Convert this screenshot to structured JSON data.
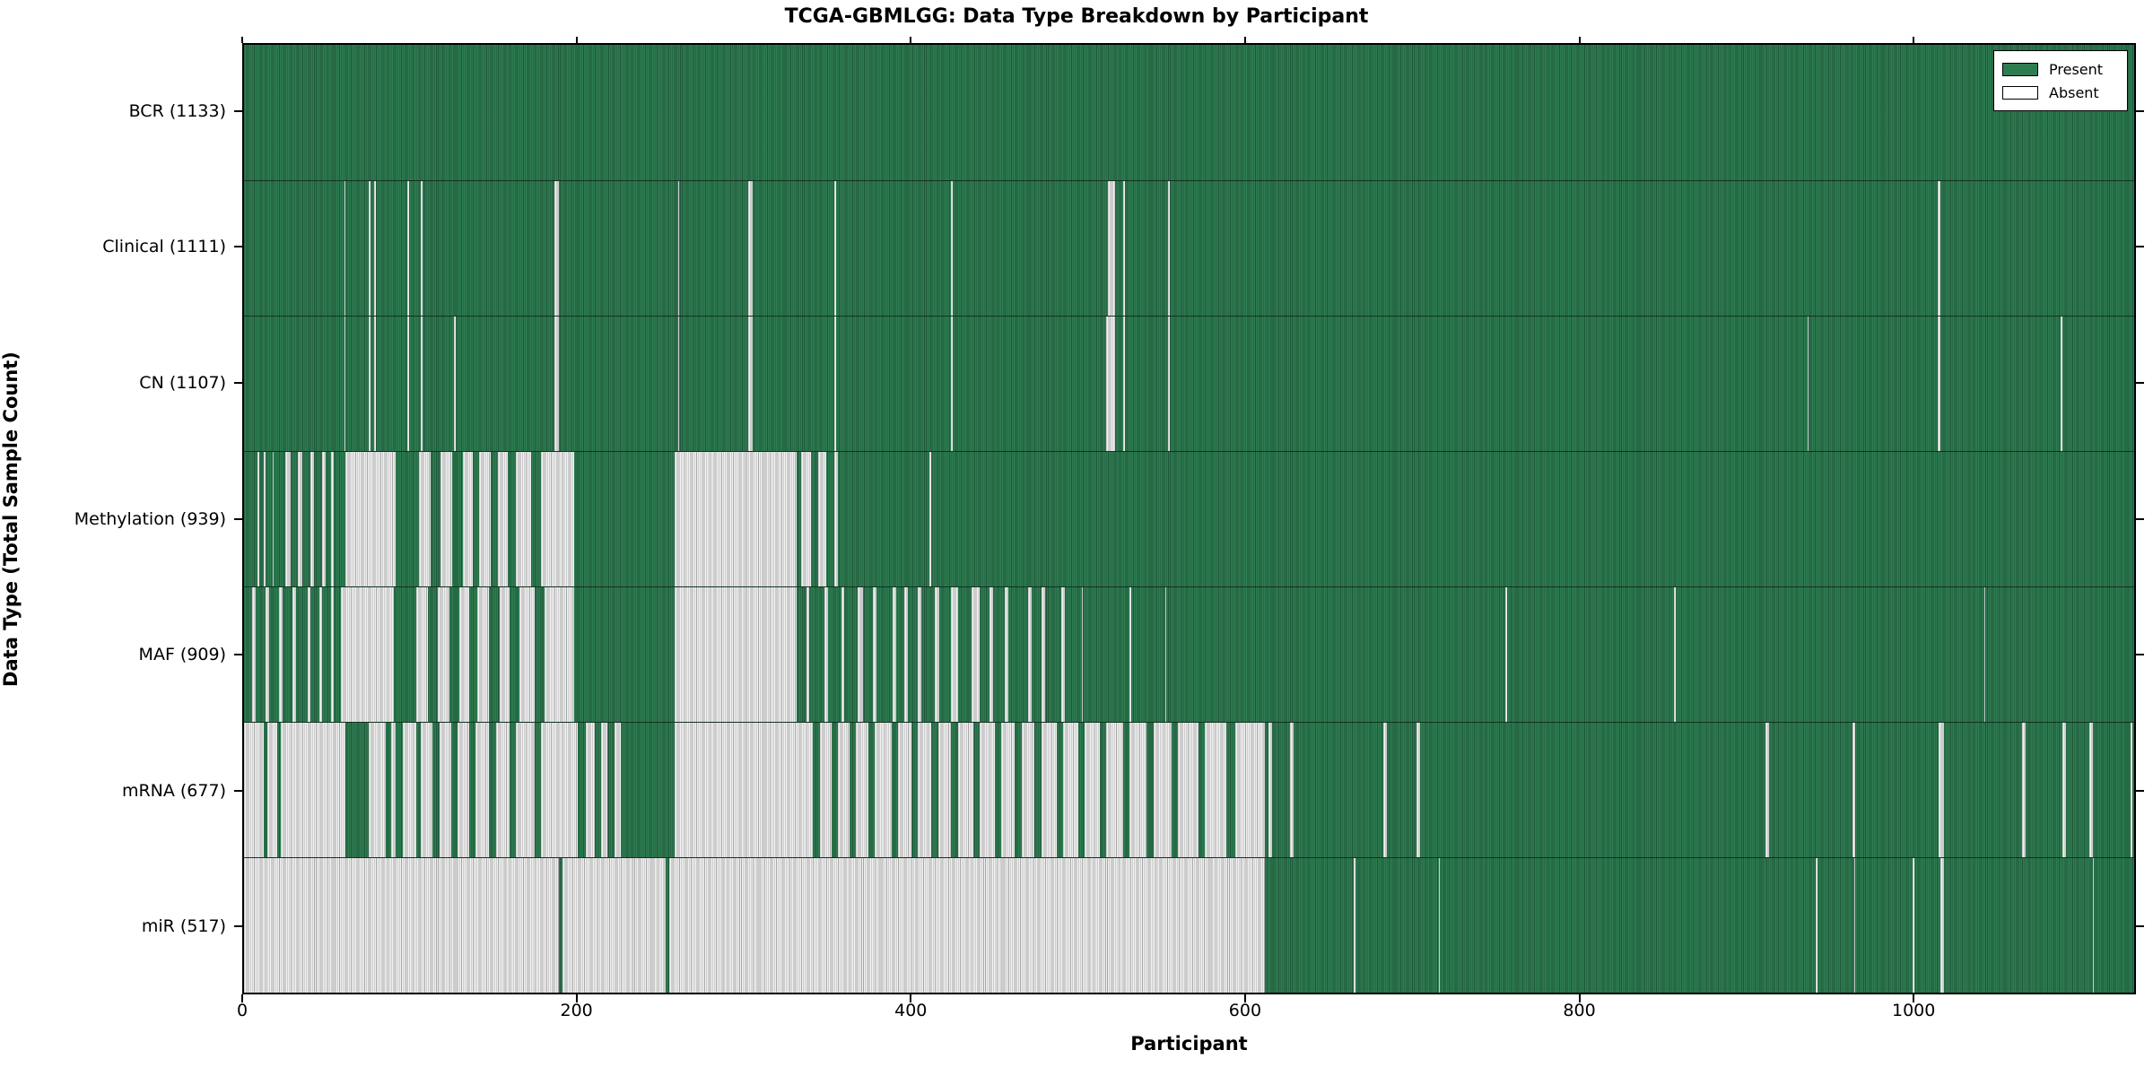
{
  "title": "TCGA-GBMLGG: Data Type Breakdown by Participant",
  "x_axis": {
    "label": "Participant",
    "ticks": [
      0,
      200,
      400,
      600,
      800,
      1000
    ],
    "min": 0,
    "max": 1133
  },
  "y_axis": {
    "label": "Data Type (Total Sample Count)"
  },
  "legend": {
    "present_label": "Present",
    "absent_label": "Absent"
  },
  "colors": {
    "present": "#2E7D52",
    "absent": "#F2F2F2",
    "frame": "#000000"
  },
  "chart_data": {
    "type": "heatmap",
    "title": "TCGA-GBMLGG: Data Type Breakdown by Participant",
    "xlabel": "Participant",
    "ylabel": "Data Type (Total Sample Count)",
    "x_range": [
      0,
      1133
    ],
    "n_participants": 1133,
    "cell_states": [
      "Present",
      "Absent"
    ],
    "legend_position": "upper right",
    "rows": [
      {
        "label": "BCR (1133)",
        "data_type": "BCR",
        "present_count": 1133,
        "absent_ranges": []
      },
      {
        "label": "Clinical (1111)",
        "data_type": "Clinical",
        "present_count": 1111,
        "absent_ranges": [
          [
            60,
            61
          ],
          [
            75,
            76
          ],
          [
            78,
            79
          ],
          [
            98,
            99
          ],
          [
            106,
            107
          ],
          [
            186,
            189
          ],
          [
            260,
            261
          ],
          [
            302,
            305
          ],
          [
            354,
            355
          ],
          [
            424,
            425
          ],
          [
            518,
            522
          ],
          [
            527,
            528
          ],
          [
            554,
            555
          ],
          [
            1015,
            1017
          ]
        ]
      },
      {
        "label": "CN (1107)",
        "data_type": "CN",
        "present_count": 1107,
        "absent_ranges": [
          [
            60,
            61
          ],
          [
            75,
            76
          ],
          [
            78,
            79
          ],
          [
            98,
            99
          ],
          [
            106,
            107
          ],
          [
            126,
            127
          ],
          [
            186,
            189
          ],
          [
            260,
            261
          ],
          [
            302,
            305
          ],
          [
            354,
            355
          ],
          [
            424,
            425
          ],
          [
            517,
            522
          ],
          [
            527,
            528
          ],
          [
            554,
            555
          ],
          [
            937,
            938
          ],
          [
            1015,
            1017
          ],
          [
            1089,
            1090
          ]
        ]
      },
      {
        "label": "Methylation (939)",
        "data_type": "Methylation",
        "present_count": 939,
        "absent_ranges": [
          [
            8,
            9
          ],
          [
            12,
            13
          ],
          [
            17,
            18
          ],
          [
            25,
            28
          ],
          [
            32,
            35
          ],
          [
            40,
            42
          ],
          [
            47,
            49
          ],
          [
            52,
            54
          ],
          [
            61,
            91
          ],
          [
            105,
            112
          ],
          [
            118,
            125
          ],
          [
            131,
            137
          ],
          [
            141,
            148
          ],
          [
            152,
            158
          ],
          [
            163,
            172
          ],
          [
            178,
            198
          ],
          [
            258,
            331
          ],
          [
            334,
            340
          ],
          [
            344,
            349
          ],
          [
            354,
            356
          ],
          [
            411,
            412
          ]
        ]
      },
      {
        "label": "MAF (909)",
        "data_type": "MAF",
        "present_count": 909,
        "absent_ranges": [
          [
            5,
            7
          ],
          [
            13,
            15
          ],
          [
            21,
            23
          ],
          [
            29,
            31
          ],
          [
            38,
            40
          ],
          [
            45,
            47
          ],
          [
            52,
            54
          ],
          [
            58,
            90
          ],
          [
            103,
            110
          ],
          [
            116,
            123
          ],
          [
            129,
            135
          ],
          [
            140,
            147
          ],
          [
            153,
            159
          ],
          [
            165,
            174
          ],
          [
            180,
            198
          ],
          [
            258,
            331
          ],
          [
            337,
            339
          ],
          [
            348,
            350
          ],
          [
            358,
            360
          ],
          [
            368,
            371
          ],
          [
            377,
            379
          ],
          [
            389,
            391
          ],
          [
            396,
            398
          ],
          [
            404,
            406
          ],
          [
            414,
            417
          ],
          [
            424,
            428
          ],
          [
            436,
            441
          ],
          [
            447,
            449
          ],
          [
            456,
            458
          ],
          [
            470,
            472
          ],
          [
            478,
            480
          ],
          [
            490,
            492
          ],
          [
            502,
            503
          ],
          [
            531,
            532
          ],
          [
            552,
            553
          ],
          [
            756,
            757
          ],
          [
            857,
            858
          ],
          [
            1043,
            1044
          ]
        ]
      },
      {
        "label": "mRNA (677)",
        "data_type": "mRNA",
        "present_count": 677,
        "absent_ranges": [
          [
            0,
            12
          ],
          [
            14,
            20
          ],
          [
            22,
            61
          ],
          [
            75,
            85
          ],
          [
            88,
            91
          ],
          [
            95,
            103
          ],
          [
            106,
            113
          ],
          [
            117,
            124
          ],
          [
            128,
            135
          ],
          [
            139,
            147
          ],
          [
            151,
            159
          ],
          [
            163,
            174
          ],
          [
            178,
            200
          ],
          [
            205,
            210
          ],
          [
            214,
            218
          ],
          [
            222,
            226
          ],
          [
            258,
            341
          ],
          [
            345,
            352
          ],
          [
            356,
            363
          ],
          [
            367,
            374
          ],
          [
            378,
            388
          ],
          [
            392,
            400
          ],
          [
            404,
            412
          ],
          [
            416,
            424
          ],
          [
            428,
            437
          ],
          [
            441,
            450
          ],
          [
            454,
            462
          ],
          [
            466,
            474
          ],
          [
            478,
            487
          ],
          [
            491,
            500
          ],
          [
            504,
            513
          ],
          [
            517,
            527
          ],
          [
            531,
            541
          ],
          [
            545,
            556
          ],
          [
            560,
            572
          ],
          [
            576,
            589
          ],
          [
            594,
            612
          ],
          [
            614,
            616
          ],
          [
            627,
            629
          ],
          [
            683,
            685
          ],
          [
            703,
            705
          ],
          [
            912,
            914
          ],
          [
            964,
            966
          ],
          [
            1016,
            1019
          ],
          [
            1066,
            1068
          ],
          [
            1090,
            1092
          ],
          [
            1106,
            1108
          ],
          [
            1131,
            1132
          ]
        ]
      },
      {
        "label": "miR (517)",
        "data_type": "miR",
        "present_count": 517,
        "absent_ranges": [
          [
            0,
            189
          ],
          [
            191,
            253
          ],
          [
            255,
            612
          ],
          [
            665,
            666
          ],
          [
            716,
            717
          ],
          [
            942,
            943
          ],
          [
            965,
            966
          ],
          [
            1000,
            1001
          ],
          [
            1017,
            1019
          ],
          [
            1108,
            1109
          ]
        ]
      }
    ]
  }
}
